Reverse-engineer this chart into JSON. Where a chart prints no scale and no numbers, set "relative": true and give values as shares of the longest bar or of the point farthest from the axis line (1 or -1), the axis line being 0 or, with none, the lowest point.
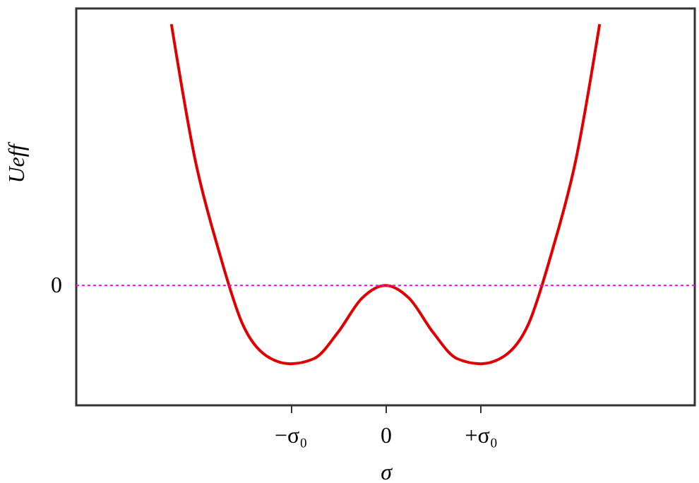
{
  "chart_data": {
    "type": "line",
    "relative": true,
    "xlabel": "σ",
    "ylabel": "Ueff",
    "categories": [
      null,
      null,
      null,
      null,
      null,
      null,
      null,
      null,
      null,
      "−σ₀",
      null,
      null,
      null,
      "0",
      null,
      null,
      null,
      "+σ₀",
      null,
      null,
      null,
      null,
      null,
      null,
      null,
      null,
      null
    ],
    "series": [
      {
        "color": "#e00000",
        "values": [
          null,
          null,
          null,
          null,
          1,
          0.48,
          0.13,
          -0.15,
          -0.27,
          -0.3,
          -0.28,
          -0.18,
          -0.05,
          0,
          -0.05,
          -0.18,
          -0.28,
          -0.3,
          -0.27,
          -0.15,
          0.13,
          0.48,
          1,
          null,
          null,
          null,
          null
        ]
      }
    ],
    "ref_lines": [
      {
        "axis": "y",
        "value": 0,
        "label": "0",
        "color": "#ff00ff",
        "line_style": "dotted"
      }
    ],
    "grid": false,
    "marker": "none",
    "line_style": "solid"
  }
}
